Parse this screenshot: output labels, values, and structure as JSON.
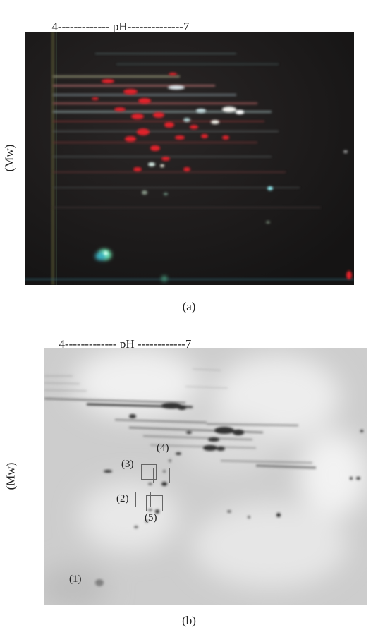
{
  "panel_a": {
    "ph_left": "4",
    "ph_dashes_left": "-------------",
    "ph_label": "pH",
    "ph_dashes_right": "--------------",
    "ph_right": "7",
    "mw_label": "(Mw)",
    "caption": "(a)"
  },
  "panel_b": {
    "ph_left": "4",
    "ph_dashes_left": "-------------",
    "ph_label": "pH",
    "ph_dashes_right": "------------",
    "ph_right": "7",
    "mw_label": "(Mw)",
    "caption": "(b)",
    "spots": [
      {
        "label": "(1)"
      },
      {
        "label": "(2)"
      },
      {
        "label": "(3)"
      },
      {
        "label": "(4)"
      },
      {
        "label": "(5)"
      }
    ]
  },
  "colors": {
    "gel_a_background": "#1b1a1a",
    "gel_b_background": "#cfcfcf",
    "red_spot": "#e0202a",
    "cyan_spot": "#8ee8ee"
  }
}
